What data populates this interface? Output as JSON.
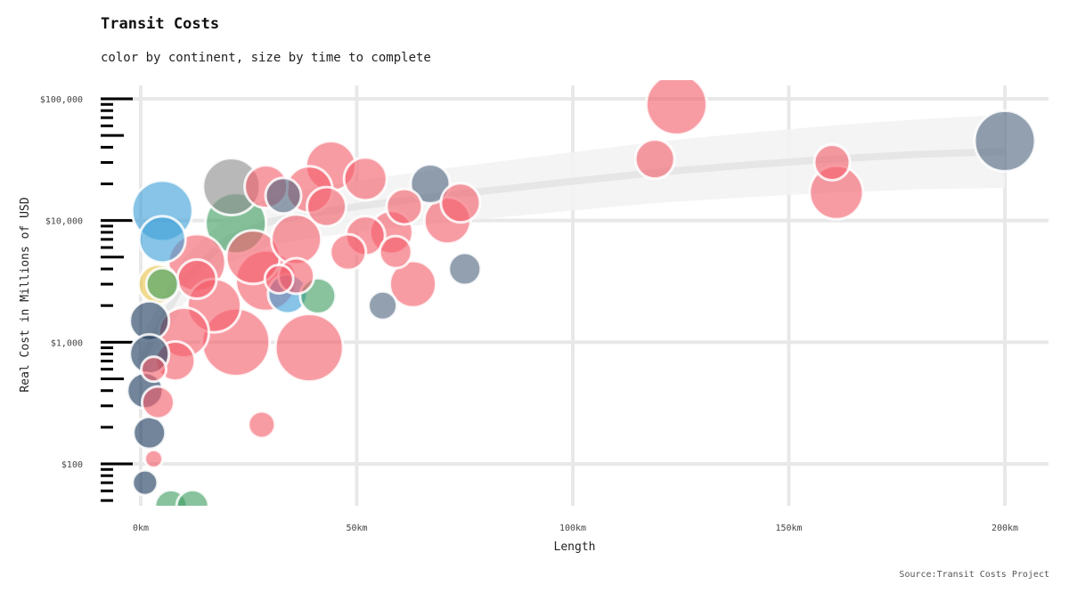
{
  "title": "Transit Costs",
  "subtitle": "color by continent, size by time to complete",
  "caption": "Source:Transit Costs Project",
  "colors": {
    "red": "#f4606c",
    "navy": "#1b3a5c",
    "slate": "#4f6580",
    "blue": "#3e9fd8",
    "green": "#3f9e62",
    "gray": "#8c8c8c",
    "yellow": "#e8c44a",
    "grid": "#e8e8e8",
    "smooth": "#eeeeee"
  },
  "chart_data": {
    "type": "scatter",
    "title": "Transit Costs",
    "subtitle": "color by continent, size by time to complete",
    "xlabel": "Length",
    "ylabel": "Real Cost in Millions of USD",
    "x_scale": "linear",
    "y_scale": "log",
    "xlim": [
      -4,
      208
    ],
    "ylim": [
      50,
      130000
    ],
    "x_ticks": [
      0,
      50,
      100,
      150,
      200
    ],
    "x_tick_labels": [
      "0km",
      "50km",
      "100km",
      "150km",
      "200km"
    ],
    "y_ticks": [
      100,
      1000,
      10000,
      100000
    ],
    "y_tick_labels": [
      "$100",
      "$1,000",
      "$10,000",
      "$100,000"
    ],
    "grid": true,
    "rug": "y-axis",
    "smooth": {
      "x": [
        0,
        10,
        20,
        30,
        40,
        50,
        60,
        70,
        80,
        100,
        120,
        140,
        160,
        180,
        200
      ],
      "y": [
        700,
        3200,
        7000,
        9800,
        11500,
        13000,
        14500,
        16000,
        17500,
        21000,
        25000,
        28500,
        32000,
        35000,
        37000
      ]
    },
    "points": [
      {
        "x": 124,
        "y": 90000,
        "r": 34,
        "c": "red"
      },
      {
        "x": 119,
        "y": 32000,
        "r": 22,
        "c": "red"
      },
      {
        "x": 160,
        "y": 30000,
        "r": 20,
        "c": "red"
      },
      {
        "x": 161,
        "y": 17000,
        "r": 30,
        "c": "red"
      },
      {
        "x": 200,
        "y": 45000,
        "r": 34,
        "c": "slate"
      },
      {
        "x": 67,
        "y": 20000,
        "r": 22,
        "c": "slate"
      },
      {
        "x": 75,
        "y": 4000,
        "r": 18,
        "c": "slate"
      },
      {
        "x": 56,
        "y": 2000,
        "r": 16,
        "c": "slate"
      },
      {
        "x": 63,
        "y": 3000,
        "r": 26,
        "c": "red"
      },
      {
        "x": 39,
        "y": 900,
        "r": 38,
        "c": "red"
      },
      {
        "x": 28,
        "y": 210,
        "r": 15,
        "c": "red"
      },
      {
        "x": 44,
        "y": 28000,
        "r": 28,
        "c": "red"
      },
      {
        "x": 52,
        "y": 22000,
        "r": 24,
        "c": "red"
      },
      {
        "x": 74,
        "y": 14000,
        "r": 22,
        "c": "red"
      },
      {
        "x": 71,
        "y": 10000,
        "r": 26,
        "c": "red"
      },
      {
        "x": 61,
        "y": 13000,
        "r": 20,
        "c": "red"
      },
      {
        "x": 58,
        "y": 8000,
        "r": 24,
        "c": "red"
      },
      {
        "x": 52,
        "y": 7500,
        "r": 22,
        "c": "red"
      },
      {
        "x": 48,
        "y": 5500,
        "r": 20,
        "c": "red"
      },
      {
        "x": 59,
        "y": 5500,
        "r": 18,
        "c": "red"
      },
      {
        "x": 41,
        "y": 2400,
        "r": 20,
        "c": "green"
      },
      {
        "x": 34,
        "y": 2500,
        "r": 22,
        "c": "blue"
      },
      {
        "x": 39,
        "y": 18000,
        "r": 26,
        "c": "red"
      },
      {
        "x": 33,
        "y": 16000,
        "r": 20,
        "c": "slate"
      },
      {
        "x": 29,
        "y": 19000,
        "r": 24,
        "c": "red"
      },
      {
        "x": 21,
        "y": 19000,
        "r": 32,
        "c": "gray"
      },
      {
        "x": 22,
        "y": 9500,
        "r": 34,
        "c": "green"
      },
      {
        "x": 36,
        "y": 7000,
        "r": 28,
        "c": "red"
      },
      {
        "x": 26,
        "y": 5000,
        "r": 30,
        "c": "red"
      },
      {
        "x": 29,
        "y": 3200,
        "r": 34,
        "c": "red"
      },
      {
        "x": 22,
        "y": 1000,
        "r": 38,
        "c": "red"
      },
      {
        "x": 17,
        "y": 2000,
        "r": 30,
        "c": "red"
      },
      {
        "x": 13,
        "y": 4500,
        "r": 32,
        "c": "red"
      },
      {
        "x": 10,
        "y": 1200,
        "r": 28,
        "c": "red"
      },
      {
        "x": 8,
        "y": 700,
        "r": 22,
        "c": "red"
      },
      {
        "x": 5,
        "y": 12000,
        "r": 34,
        "c": "blue"
      },
      {
        "x": 5,
        "y": 7000,
        "r": 26,
        "c": "blue"
      },
      {
        "x": 4,
        "y": 3000,
        "r": 22,
        "c": "yellow"
      },
      {
        "x": 5,
        "y": 3000,
        "r": 18,
        "c": "green"
      },
      {
        "x": 2,
        "y": 1500,
        "r": 22,
        "c": "navy"
      },
      {
        "x": 2,
        "y": 800,
        "r": 22,
        "c": "navy"
      },
      {
        "x": 1,
        "y": 400,
        "r": 20,
        "c": "navy"
      },
      {
        "x": 2,
        "y": 180,
        "r": 18,
        "c": "navy"
      },
      {
        "x": 1,
        "y": 70,
        "r": 14,
        "c": "navy"
      },
      {
        "x": 3,
        "y": 110,
        "r": 10,
        "c": "red"
      },
      {
        "x": 4,
        "y": 320,
        "r": 18,
        "c": "red"
      },
      {
        "x": 3,
        "y": 600,
        "r": 14,
        "c": "red"
      },
      {
        "x": 7,
        "y": 45,
        "r": 18,
        "c": "green"
      },
      {
        "x": 12,
        "y": 45,
        "r": 18,
        "c": "green"
      },
      {
        "x": 43,
        "y": 13000,
        "r": 22,
        "c": "red"
      },
      {
        "x": 36,
        "y": 3500,
        "r": 20,
        "c": "red"
      },
      {
        "x": 32,
        "y": 3300,
        "r": 16,
        "c": "red"
      },
      {
        "x": 13,
        "y": 3300,
        "r": 22,
        "c": "red"
      }
    ]
  }
}
